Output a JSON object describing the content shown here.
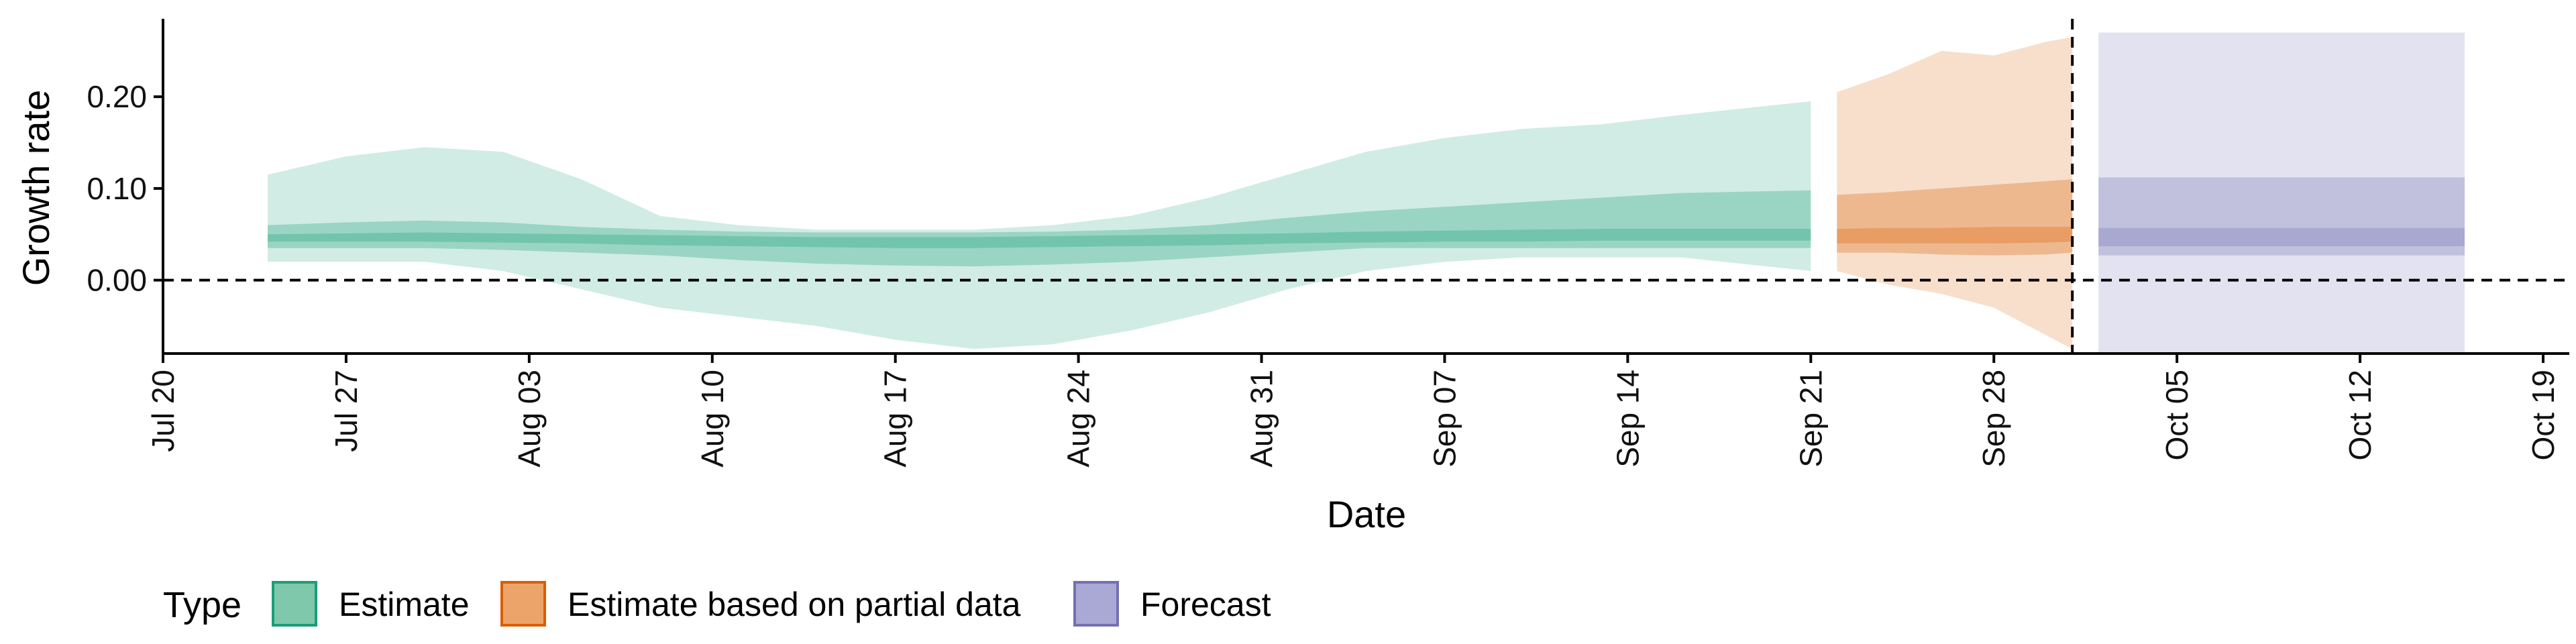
{
  "chart_data": {
    "type": "area",
    "xlabel": "Date",
    "ylabel": "Growth rate",
    "x_range": [
      "2020-07-20",
      "2020-10-20"
    ],
    "y_range": [
      -0.08,
      0.285
    ],
    "x_ticks": [
      "Jul 20",
      "Jul 27",
      "Aug 03",
      "Aug 10",
      "Aug 17",
      "Aug 24",
      "Aug 31",
      "Sep 07",
      "Sep 14",
      "Sep 21",
      "Sep 28",
      "Oct 05",
      "Oct 12",
      "Oct 19"
    ],
    "x_tick_dates": [
      "2020-07-20",
      "2020-07-27",
      "2020-08-03",
      "2020-08-10",
      "2020-08-17",
      "2020-08-24",
      "2020-08-31",
      "2020-09-07",
      "2020-09-14",
      "2020-09-21",
      "2020-09-28",
      "2020-10-05",
      "2020-10-12",
      "2020-10-19"
    ],
    "y_ticks": [
      0.0,
      0.1,
      0.2
    ],
    "y_tick_labels": [
      "0.00",
      "0.10",
      "0.20"
    ],
    "reference_lines": {
      "horizontal_y": 0.0,
      "vertical_date": "2020-10-01",
      "style": "dashed"
    },
    "legend": {
      "title": "Type",
      "position": "bottom",
      "entries": [
        {
          "label": "Estimate",
          "fill": "#7fc8ab",
          "stroke": "#1b9e77"
        },
        {
          "label": "Estimate based on partial data",
          "fill": "#eda46a",
          "stroke": "#d95f02"
        },
        {
          "label": "Forecast",
          "fill": "#aaa8d4",
          "stroke": "#7570b3"
        }
      ]
    },
    "series": [
      {
        "name": "Estimate",
        "color": "#1b9e77",
        "dates": [
          "2020-07-24",
          "2020-07-27",
          "2020-07-30",
          "2020-08-02",
          "2020-08-05",
          "2020-08-08",
          "2020-08-11",
          "2020-08-14",
          "2020-08-17",
          "2020-08-20",
          "2020-08-23",
          "2020-08-26",
          "2020-08-29",
          "2020-09-01",
          "2020-09-04",
          "2020-09-07",
          "2020-09-10",
          "2020-09-13",
          "2020-09-16",
          "2020-09-21"
        ],
        "ci90_low": [
          0.02,
          0.02,
          0.02,
          0.01,
          -0.01,
          -0.03,
          -0.04,
          -0.05,
          -0.065,
          -0.075,
          -0.07,
          -0.055,
          -0.035,
          -0.01,
          0.01,
          0.02,
          0.025,
          0.025,
          0.025,
          0.01
        ],
        "ci90_high": [
          0.115,
          0.135,
          0.145,
          0.14,
          0.11,
          0.07,
          0.06,
          0.055,
          0.055,
          0.055,
          0.06,
          0.07,
          0.09,
          0.115,
          0.14,
          0.155,
          0.165,
          0.17,
          0.18,
          0.195
        ],
        "ci50_low": [
          0.035,
          0.035,
          0.035,
          0.033,
          0.03,
          0.027,
          0.022,
          0.018,
          0.016,
          0.015,
          0.017,
          0.02,
          0.025,
          0.03,
          0.035,
          0.035,
          0.035,
          0.035,
          0.035,
          0.035
        ],
        "ci50_high": [
          0.06,
          0.063,
          0.065,
          0.063,
          0.058,
          0.055,
          0.053,
          0.052,
          0.052,
          0.052,
          0.053,
          0.055,
          0.06,
          0.068,
          0.075,
          0.08,
          0.085,
          0.09,
          0.095,
          0.098
        ],
        "ci20_low": [
          0.042,
          0.042,
          0.042,
          0.041,
          0.04,
          0.038,
          0.037,
          0.036,
          0.035,
          0.035,
          0.036,
          0.037,
          0.038,
          0.04,
          0.041,
          0.042,
          0.042,
          0.043,
          0.043,
          0.043
        ],
        "ci20_high": [
          0.05,
          0.051,
          0.052,
          0.051,
          0.05,
          0.049,
          0.048,
          0.047,
          0.047,
          0.047,
          0.048,
          0.049,
          0.05,
          0.051,
          0.053,
          0.054,
          0.055,
          0.056,
          0.056,
          0.056
        ]
      },
      {
        "name": "Estimate based on partial data",
        "color": "#d95f02",
        "dates": [
          "2020-09-22",
          "2020-09-24",
          "2020-09-26",
          "2020-09-28",
          "2020-09-30",
          "2020-10-01"
        ],
        "ci90_low": [
          0.01,
          -0.005,
          -0.015,
          -0.03,
          -0.06,
          -0.075
        ],
        "ci90_high": [
          0.205,
          0.225,
          0.25,
          0.245,
          0.26,
          0.265
        ],
        "ci50_low": [
          0.03,
          0.03,
          0.028,
          0.027,
          0.028,
          0.03
        ],
        "ci50_high": [
          0.093,
          0.096,
          0.1,
          0.104,
          0.108,
          0.11
        ],
        "ci20_low": [
          0.04,
          0.04,
          0.04,
          0.04,
          0.041,
          0.042
        ],
        "ci20_high": [
          0.056,
          0.057,
          0.057,
          0.058,
          0.058,
          0.058
        ]
      },
      {
        "name": "Forecast",
        "color": "#7570b3",
        "dates": [
          "2020-10-02",
          "2020-10-16"
        ],
        "ci90_low": [
          -0.08,
          -0.08
        ],
        "ci90_high": [
          0.27,
          0.27
        ],
        "ci50_low": [
          0.027,
          0.027
        ],
        "ci50_high": [
          0.112,
          0.112
        ],
        "ci20_low": [
          0.037,
          0.037
        ],
        "ci20_high": [
          0.057,
          0.057
        ]
      }
    ]
  }
}
